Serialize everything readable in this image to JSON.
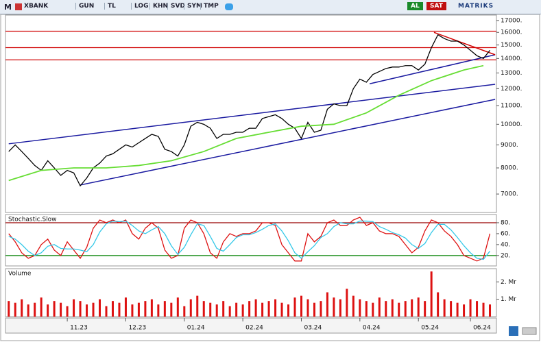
{
  "toolbar": {
    "items": [
      "M",
      "XBANK",
      "GUN",
      "TL",
      "LOG",
      "KHN",
      "SVD",
      "SYM",
      "TMP"
    ],
    "buy": "AL",
    "sell": "SAT",
    "brand": "MATRIKS"
  },
  "chart_data": [
    {
      "type": "line",
      "log_scale": true,
      "xlim": [
        -0.5,
        75
      ],
      "ylim": [
        6370,
        17480
      ],
      "yticks": [
        {
          "value": 7000,
          "label": "7000."
        },
        {
          "value": 8000,
          "label": "8000."
        },
        {
          "value": 9000,
          "label": "9000."
        },
        {
          "value": 10000,
          "label": "10000."
        },
        {
          "value": 11000,
          "label": "11000."
        },
        {
          "value": 12000,
          "label": "12000."
        },
        {
          "value": 13000,
          "label": "13000."
        },
        {
          "value": 14000,
          "label": "14000."
        },
        {
          "value": 15000,
          "label": "15000."
        },
        {
          "value": 16000,
          "label": "16000."
        },
        {
          "value": 17000,
          "label": "17000."
        }
      ],
      "series": [
        {
          "color": "#000000",
          "values": [
            8700,
            9000,
            8700,
            8400,
            8100,
            7900,
            8300,
            8000,
            7700,
            7900,
            7800,
            7300,
            7600,
            8000,
            8200,
            8500,
            8600,
            8800,
            9000,
            8900,
            9100,
            9300,
            9500,
            9400,
            8800,
            8700,
            8500,
            9000,
            9900,
            10100,
            10000,
            9800,
            9300,
            9500,
            9500,
            9600,
            9600,
            9800,
            9800,
            10300,
            10400,
            10500,
            10300,
            10000,
            9800,
            9300,
            10100,
            9600,
            9700,
            10800,
            11100,
            11000,
            11000,
            12000,
            12600,
            12400,
            12900,
            13100,
            13300,
            13400,
            13400,
            13500,
            13500,
            13200,
            13600,
            14800,
            15800,
            15500,
            15300,
            15300,
            15000,
            14600,
            14200,
            14000,
            14600
          ]
        },
        {
          "color": "#66dd33",
          "x": [
            0,
            5,
            10,
            15,
            20,
            25,
            30,
            35,
            40,
            45,
            50,
            55,
            60,
            65,
            70,
            73
          ],
          "values": [
            7500,
            7900,
            8000,
            8000,
            8100,
            8300,
            8700,
            9300,
            9600,
            9900,
            10000,
            10600,
            11600,
            12500,
            13200,
            13500
          ]
        }
      ],
      "hlines": [
        {
          "value": 16100,
          "color": "#d00000"
        },
        {
          "value": 14800,
          "color": "#d00000"
        },
        {
          "value": 13900,
          "color": "#d00000"
        }
      ],
      "trendlines": [
        {
          "color": "#1a1aa0",
          "x": [
            0,
            74.8
          ],
          "values": [
            9050,
            12270
          ]
        },
        {
          "color": "#1a1aa0",
          "x": [
            11,
            74.8
          ],
          "values": [
            7330,
            11360
          ]
        },
        {
          "color": "#1a1aa0",
          "x": [
            55.5,
            74.8
          ],
          "values": [
            12300,
            14270
          ]
        },
        {
          "color": "#d00000",
          "x": [
            65.4,
            74.8
          ],
          "values": [
            16000,
            14270
          ]
        }
      ]
    },
    {
      "type": "line",
      "title": "Stochastic.Slow",
      "xlim": [
        -0.5,
        75
      ],
      "ylim": [
        1,
        95
      ],
      "yticks": [
        {
          "value": 20,
          "label": "20."
        },
        {
          "value": 40,
          "label": "40."
        },
        {
          "value": 60,
          "label": "60."
        },
        {
          "value": 80,
          "label": "80."
        }
      ],
      "series": [
        {
          "color": "#dd1111",
          "values": [
            60,
            45,
            25,
            15,
            20,
            40,
            50,
            30,
            20,
            45,
            30,
            15,
            35,
            70,
            85,
            80,
            85,
            80,
            85,
            60,
            50,
            70,
            80,
            70,
            30,
            15,
            20,
            70,
            85,
            80,
            60,
            25,
            15,
            45,
            60,
            55,
            60,
            60,
            65,
            80,
            80,
            75,
            40,
            25,
            10,
            10,
            60,
            45,
            55,
            80,
            85,
            75,
            75,
            85,
            90,
            75,
            80,
            65,
            60,
            60,
            55,
            40,
            25,
            35,
            65,
            85,
            80,
            65,
            55,
            40,
            20,
            15,
            10,
            15,
            60
          ]
        },
        {
          "color": "#33c8e8",
          "values": [
            55,
            50,
            40,
            28,
            20,
            25,
            37,
            40,
            33,
            32,
            32,
            30,
            27,
            40,
            63,
            78,
            83,
            82,
            83,
            75,
            65,
            60,
            67,
            73,
            60,
            38,
            22,
            35,
            58,
            78,
            75,
            55,
            33,
            28,
            40,
            53,
            58,
            58,
            62,
            68,
            75,
            78,
            65,
            47,
            25,
            15,
            27,
            38,
            53,
            60,
            73,
            80,
            78,
            78,
            83,
            83,
            82,
            73,
            68,
            62,
            58,
            52,
            40,
            33,
            42,
            62,
            77,
            77,
            67,
            53,
            38,
            25,
            15,
            13,
            28
          ]
        }
      ],
      "hlines": [
        {
          "value": 80,
          "color": "#990000"
        },
        {
          "value": 20,
          "color": "#008000"
        }
      ]
    },
    {
      "type": "bar",
      "title": "Volume",
      "xlim": [
        -0.5,
        75
      ],
      "ylim": [
        0,
        2.76
      ],
      "color": "#dd1111",
      "yticks": [
        {
          "value": 1,
          "label": "1. Mr"
        },
        {
          "value": 2,
          "label": "2. Mr"
        }
      ],
      "xticks": [
        {
          "value": 9,
          "label": "11.23"
        },
        {
          "value": 18,
          "label": "12.23"
        },
        {
          "value": 27,
          "label": "01.24"
        },
        {
          "value": 36,
          "label": "02.24"
        },
        {
          "value": 45,
          "label": "03.24"
        },
        {
          "value": 54,
          "label": "04.24"
        },
        {
          "value": 63,
          "label": "05.24"
        },
        {
          "value": 71,
          "label": "06.24"
        }
      ],
      "values": [
        0.9,
        0.8,
        1.0,
        0.7,
        0.8,
        1.1,
        0.7,
        0.9,
        0.8,
        0.6,
        1.0,
        0.9,
        0.7,
        0.8,
        1.0,
        0.6,
        0.9,
        0.8,
        1.1,
        0.7,
        0.8,
        0.9,
        1.0,
        0.7,
        0.9,
        0.8,
        1.1,
        0.6,
        1.0,
        1.2,
        0.9,
        0.8,
        0.7,
        0.9,
        0.6,
        0.8,
        0.7,
        0.9,
        1.0,
        0.8,
        0.9,
        1.0,
        0.8,
        0.7,
        1.1,
        1.2,
        1.0,
        0.8,
        0.9,
        1.4,
        1.1,
        1.0,
        1.6,
        1.2,
        1.0,
        0.9,
        0.8,
        1.1,
        0.9,
        1.0,
        0.8,
        0.9,
        1.0,
        1.1,
        0.9,
        2.6,
        1.4,
        1.0,
        0.9,
        0.8,
        0.7,
        1.0,
        0.9,
        0.8,
        0.7
      ]
    }
  ]
}
